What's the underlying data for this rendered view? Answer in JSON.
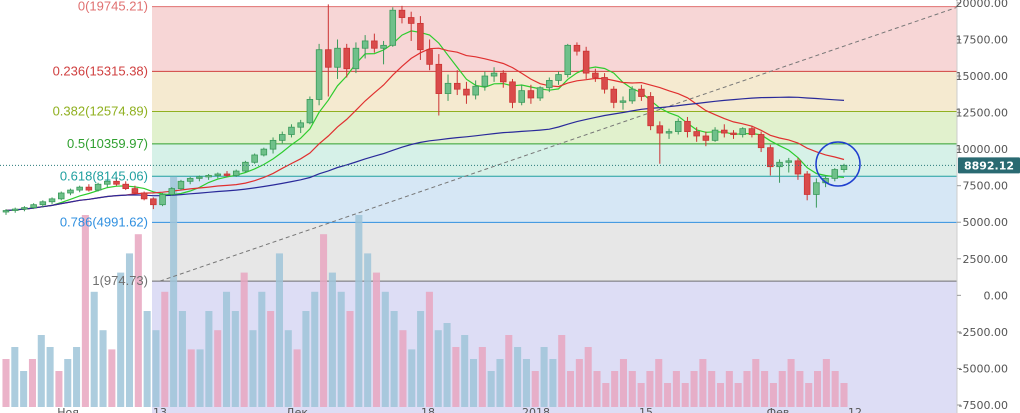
{
  "chart_data": {
    "type": "candlestick",
    "y_axis": {
      "side": "right",
      "range": [
        -7500,
        20200
      ],
      "ticks": [
        20000,
        17500,
        15000,
        12500,
        10000,
        7500,
        5000,
        2500,
        0,
        -2500,
        -5000,
        -7500
      ],
      "tick_labels": [
        "20000.00",
        "17500.00",
        "15000.00",
        "12500.00",
        "10000.00",
        "7500.00",
        "5000.00",
        "2500.00",
        "0.00",
        "-2500.00",
        "-5000.00",
        "-7500.00"
      ]
    },
    "x_axis": {
      "labels": [
        "Ноя",
        "13",
        "Дек",
        "18",
        "2018",
        "15",
        "Фев",
        "12"
      ]
    },
    "price_label": {
      "value": 8892.12,
      "text": "8892.12"
    },
    "fib_levels": [
      {
        "label": "0(19745.21)",
        "value": 19745.21,
        "color": "#e07070",
        "fill": "#f6cfcf"
      },
      {
        "label": "0.236(15315.38)",
        "value": 15315.38,
        "color": "#d04040",
        "fill": "#f3e6c8"
      },
      {
        "label": "0.382(12574.89)",
        "value": 12574.89,
        "color": "#90b020",
        "fill": "#dcefc4"
      },
      {
        "label": "0.5(10359.97)",
        "value": 10359.97,
        "color": "#30a030",
        "fill": "#cfeee4"
      },
      {
        "label": "0.618(8145.06)",
        "value": 8145.06,
        "color": "#20a0a0",
        "fill": "#cfe3f3"
      },
      {
        "label": "0.786(4991.62)",
        "value": 4991.62,
        "color": "#3090e0",
        "fill": "#e3e3e3"
      },
      {
        "label": "1(974.73)",
        "value": 974.73,
        "color": "#707070",
        "fill": "#d7d7f3"
      }
    ],
    "candles": [
      [
        5700,
        5900,
        5500,
        5800
      ],
      [
        5800,
        6000,
        5650,
        5900
      ],
      [
        5900,
        6100,
        5750,
        6000
      ],
      [
        6000,
        6300,
        5900,
        6200
      ],
      [
        6200,
        6500,
        6050,
        6400
      ],
      [
        6400,
        6700,
        6250,
        6600
      ],
      [
        6600,
        7100,
        6500,
        7000
      ],
      [
        7000,
        7300,
        6850,
        7200
      ],
      [
        7200,
        7500,
        7050,
        7400
      ],
      [
        7400,
        7600,
        7100,
        7200
      ],
      [
        7200,
        7700,
        7100,
        7600
      ],
      [
        7600,
        7900,
        7400,
        7800
      ],
      [
        7800,
        8000,
        7500,
        7600
      ],
      [
        7600,
        7800,
        7200,
        7300
      ],
      [
        7300,
        7500,
        6900,
        7000
      ],
      [
        7000,
        7100,
        6500,
        6600
      ],
      [
        6600,
        6700,
        5900,
        6200
      ],
      [
        6200,
        7000,
        6100,
        6900
      ],
      [
        6900,
        7400,
        6800,
        7300
      ],
      [
        7300,
        7900,
        7200,
        7800
      ],
      [
        7800,
        8100,
        7600,
        8000
      ],
      [
        8000,
        8200,
        7800,
        8100
      ],
      [
        8100,
        8300,
        7900,
        8200
      ],
      [
        8200,
        8400,
        8000,
        8300
      ],
      [
        8300,
        8500,
        8100,
        8200
      ],
      [
        8200,
        8600,
        8100,
        8500
      ],
      [
        8500,
        9200,
        8400,
        9100
      ],
      [
        9100,
        9700,
        9000,
        9600
      ],
      [
        9600,
        10100,
        9500,
        10000
      ],
      [
        10000,
        10800,
        9700,
        10600
      ],
      [
        10600,
        11200,
        10400,
        11000
      ],
      [
        11000,
        11700,
        10800,
        11500
      ],
      [
        11500,
        12000,
        11100,
        11800
      ],
      [
        11800,
        13600,
        11700,
        13400
      ],
      [
        13400,
        17200,
        13000,
        16800
      ],
      [
        16800,
        19900,
        13600,
        15600
      ],
      [
        15600,
        17500,
        14800,
        16900
      ],
      [
        16900,
        17200,
        14900,
        15500
      ],
      [
        15500,
        17300,
        15200,
        16900
      ],
      [
        16900,
        17800,
        16200,
        17400
      ],
      [
        17400,
        17900,
        16600,
        16900
      ],
      [
        16900,
        17400,
        15800,
        17100
      ],
      [
        17100,
        19700,
        17000,
        19500
      ],
      [
        19500,
        19800,
        18600,
        19000
      ],
      [
        19000,
        19400,
        17400,
        18600
      ],
      [
        18600,
        19100,
        16100,
        16800
      ],
      [
        16800,
        17500,
        15400,
        15800
      ],
      [
        15800,
        16500,
        12300,
        13800
      ],
      [
        13800,
        15100,
        13300,
        14500
      ],
      [
        14500,
        15400,
        13700,
        14100
      ],
      [
        14100,
        14600,
        13100,
        13700
      ],
      [
        13700,
        14700,
        13400,
        14300
      ],
      [
        14300,
        15300,
        14000,
        15000
      ],
      [
        15000,
        15600,
        14600,
        15200
      ],
      [
        15200,
        15400,
        14200,
        14600
      ],
      [
        14600,
        14800,
        12800,
        13200
      ],
      [
        13200,
        14400,
        13000,
        14000
      ],
      [
        14000,
        14400,
        13100,
        13500
      ],
      [
        13500,
        14300,
        13300,
        14200
      ],
      [
        14200,
        14900,
        13900,
        14700
      ],
      [
        14700,
        15300,
        14400,
        15100
      ],
      [
        15100,
        17200,
        14900,
        17100
      ],
      [
        17100,
        17300,
        16400,
        16700
      ],
      [
        16700,
        17000,
        14800,
        15200
      ],
      [
        15200,
        15500,
        14600,
        14900
      ],
      [
        14900,
        15200,
        13800,
        14100
      ],
      [
        14100,
        14300,
        12800,
        13200
      ],
      [
        13200,
        13600,
        12700,
        13300
      ],
      [
        13300,
        14300,
        13100,
        14100
      ],
      [
        14100,
        14400,
        13300,
        13600
      ],
      [
        13600,
        13900,
        11300,
        11600
      ],
      [
        11600,
        11900,
        9000,
        11100
      ],
      [
        11100,
        11400,
        10700,
        11200
      ],
      [
        11200,
        12100,
        11000,
        11900
      ],
      [
        11900,
        12200,
        10800,
        11200
      ],
      [
        11200,
        11500,
        10500,
        10900
      ],
      [
        10900,
        11200,
        10200,
        10600
      ],
      [
        10600,
        11500,
        10500,
        11300
      ],
      [
        11300,
        11700,
        10800,
        11100
      ],
      [
        11100,
        11300,
        10700,
        11000
      ],
      [
        11000,
        11500,
        10800,
        11400
      ],
      [
        11400,
        11600,
        10800,
        11000
      ],
      [
        11000,
        11200,
        9800,
        10100
      ],
      [
        10100,
        10300,
        8200,
        8800
      ],
      [
        8800,
        9300,
        7700,
        9100
      ],
      [
        9100,
        9400,
        8400,
        9200
      ],
      [
        9200,
        9400,
        7900,
        8300
      ],
      [
        8300,
        8500,
        6500,
        6900
      ],
      [
        6900,
        8000,
        6000,
        7700
      ],
      [
        7700,
        8200,
        7400,
        8000
      ],
      [
        8000,
        8700,
        7800,
        8600
      ],
      [
        8600,
        9000,
        8400,
        8892
      ]
    ],
    "volume": [
      {
        "start": -7000,
        "values": [
          4,
          5,
          3,
          4,
          6,
          5,
          3,
          4,
          5,
          10,
          6,
          4,
          3,
          7,
          8,
          9,
          5,
          4,
          6,
          12,
          5,
          3
        ]
      },
      {
        "start": -7000,
        "values": [
          3,
          5,
          4,
          6,
          5,
          7,
          4,
          6,
          5,
          8,
          4,
          3,
          5,
          6,
          9,
          7,
          6,
          5,
          10,
          8,
          7,
          6,
          5,
          4,
          3,
          5,
          6,
          4,
          7,
          5,
          6,
          4,
          5,
          3,
          4,
          6,
          5,
          4,
          3,
          5,
          4,
          6,
          3,
          4,
          5,
          3,
          2,
          3,
          4,
          3,
          2,
          3,
          4,
          2,
          3,
          2,
          3,
          4,
          3,
          2,
          3,
          2,
          3,
          4,
          3,
          2,
          3,
          4,
          3,
          2,
          3,
          4,
          3,
          2
        ]
      }
    ],
    "ma_lines": [
      {
        "color": "#2ecc2e"
      },
      {
        "color": "#e03030"
      },
      {
        "color": "#2a2a9a"
      }
    ]
  }
}
